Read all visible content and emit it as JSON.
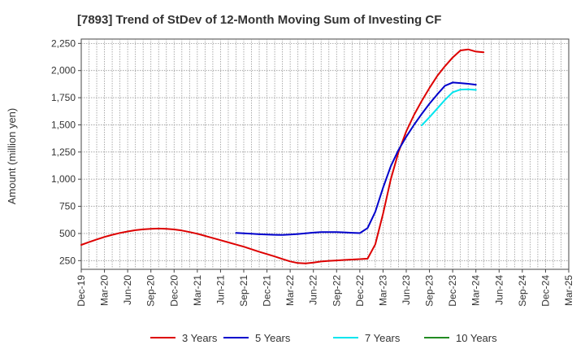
{
  "chart_data": {
    "type": "line",
    "title": "[7893]  Trend of StDev of 12-Month Moving Sum of Investing CF",
    "xlabel": "",
    "ylabel": "Amount (million yen)",
    "ylim": [
      170,
      2290
    ],
    "grid": true,
    "legend_position": "bottom",
    "x_ticks": [
      "Dec-19",
      "Mar-20",
      "Jun-20",
      "Sep-20",
      "Dec-20",
      "Mar-21",
      "Jun-21",
      "Sep-21",
      "Dec-21",
      "Mar-22",
      "Jun-22",
      "Sep-22",
      "Dec-22",
      "Mar-23",
      "Jun-23",
      "Sep-23",
      "Dec-23",
      "Mar-24",
      "Jun-24",
      "Sep-24",
      "Dec-24",
      "Mar-25"
    ],
    "y_ticks": [
      "250",
      "500",
      "750",
      "1,000",
      "1,250",
      "1,500",
      "1,750",
      "2,000",
      "2,250"
    ],
    "series": [
      {
        "name": "3 Years",
        "color": "#dd0000",
        "points": [
          [
            "2019-12",
            395
          ],
          [
            "2020-01",
            420
          ],
          [
            "2020-02",
            445
          ],
          [
            "2020-03",
            468
          ],
          [
            "2020-04",
            488
          ],
          [
            "2020-05",
            505
          ],
          [
            "2020-06",
            518
          ],
          [
            "2020-07",
            530
          ],
          [
            "2020-08",
            538
          ],
          [
            "2020-09",
            543
          ],
          [
            "2020-10",
            545
          ],
          [
            "2020-11",
            543
          ],
          [
            "2020-12",
            537
          ],
          [
            "2021-01",
            527
          ],
          [
            "2021-02",
            513
          ],
          [
            "2021-03",
            497
          ],
          [
            "2021-04",
            478
          ],
          [
            "2021-05",
            458
          ],
          [
            "2021-06",
            438
          ],
          [
            "2021-07",
            418
          ],
          [
            "2021-08",
            398
          ],
          [
            "2021-09",
            378
          ],
          [
            "2021-10",
            355
          ],
          [
            "2021-11",
            332
          ],
          [
            "2021-12",
            310
          ],
          [
            "2022-01",
            288
          ],
          [
            "2022-02",
            265
          ],
          [
            "2022-03",
            243
          ],
          [
            "2022-04",
            228
          ],
          [
            "2022-05",
            225
          ],
          [
            "2022-06",
            232
          ],
          [
            "2022-07",
            242
          ],
          [
            "2022-08",
            248
          ],
          [
            "2022-09",
            252
          ],
          [
            "2022-10",
            256
          ],
          [
            "2022-11",
            260
          ],
          [
            "2022-12",
            264
          ],
          [
            "2023-01",
            268
          ],
          [
            "2023-02",
            400
          ],
          [
            "2023-03",
            680
          ],
          [
            "2023-04",
            1000
          ],
          [
            "2023-05",
            1250
          ],
          [
            "2023-06",
            1440
          ],
          [
            "2023-07",
            1590
          ],
          [
            "2023-08",
            1720
          ],
          [
            "2023-09",
            1840
          ],
          [
            "2023-10",
            1950
          ],
          [
            "2023-11",
            2040
          ],
          [
            "2023-12",
            2120
          ],
          [
            "2024-01",
            2185
          ],
          [
            "2024-02",
            2195
          ],
          [
            "2024-03",
            2175
          ],
          [
            "2024-04",
            2168
          ]
        ]
      },
      {
        "name": "5 Years",
        "color": "#0000cc",
        "points": [
          [
            "2021-08",
            505
          ],
          [
            "2021-09",
            502
          ],
          [
            "2021-10",
            497
          ],
          [
            "2021-11",
            493
          ],
          [
            "2021-12",
            490
          ],
          [
            "2022-01",
            488
          ],
          [
            "2022-02",
            487
          ],
          [
            "2022-03",
            490
          ],
          [
            "2022-04",
            495
          ],
          [
            "2022-05",
            502
          ],
          [
            "2022-06",
            508
          ],
          [
            "2022-07",
            512
          ],
          [
            "2022-08",
            513
          ],
          [
            "2022-09",
            512
          ],
          [
            "2022-10",
            510
          ],
          [
            "2022-11",
            506
          ],
          [
            "2022-12",
            503
          ],
          [
            "2023-01",
            550
          ],
          [
            "2023-02",
            700
          ],
          [
            "2023-03",
            920
          ],
          [
            "2023-04",
            1120
          ],
          [
            "2023-05",
            1270
          ],
          [
            "2023-06",
            1390
          ],
          [
            "2023-07",
            1500
          ],
          [
            "2023-08",
            1600
          ],
          [
            "2023-09",
            1695
          ],
          [
            "2023-10",
            1780
          ],
          [
            "2023-11",
            1860
          ],
          [
            "2023-12",
            1890
          ],
          [
            "2024-01",
            1885
          ],
          [
            "2024-02",
            1878
          ],
          [
            "2024-03",
            1870
          ]
        ]
      },
      {
        "name": "7 Years",
        "color": "#00e5ee",
        "points": [
          [
            "2023-08",
            1495
          ],
          [
            "2023-09",
            1570
          ],
          [
            "2023-10",
            1650
          ],
          [
            "2023-11",
            1730
          ],
          [
            "2023-12",
            1800
          ],
          [
            "2024-01",
            1825
          ],
          [
            "2024-02",
            1828
          ],
          [
            "2024-03",
            1822
          ]
        ]
      },
      {
        "name": "10 Years",
        "color": "#228b22",
        "points": []
      }
    ]
  }
}
